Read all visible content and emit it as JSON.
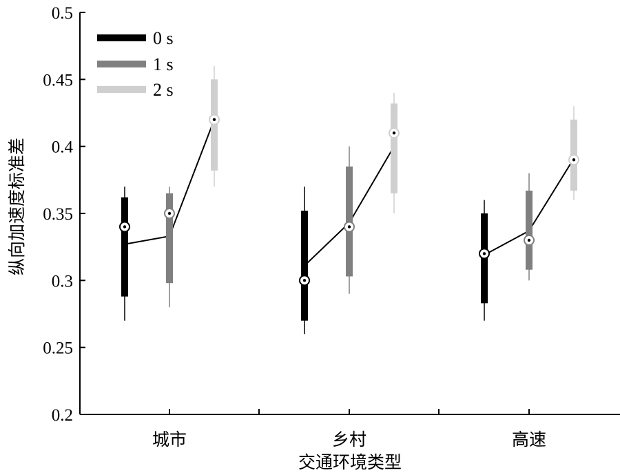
{
  "chart_data": {
    "type": "boxplot",
    "title": "",
    "xlabel": "交通环境类型",
    "ylabel": "纵向加速度标准差",
    "categories": [
      "城市",
      "乡村",
      "高速"
    ],
    "ylim": [
      0.2,
      0.5
    ],
    "yticks": [
      0.2,
      0.25,
      0.3,
      0.35,
      0.4,
      0.45,
      0.5
    ],
    "ytick_labels": [
      "0.2",
      "0.25",
      "0.3",
      "0.35",
      "0.4",
      "0.45",
      "0.5"
    ],
    "legend_position": "top-left",
    "grid": false,
    "series": [
      {
        "name": "0 s",
        "color": "#000000",
        "boxes": [
          {
            "whisker_low": 0.27,
            "q1": 0.288,
            "median": 0.34,
            "q3": 0.362,
            "whisker_high": 0.37,
            "mean": 0.327
          },
          {
            "whisker_low": 0.26,
            "q1": 0.27,
            "median": 0.3,
            "q3": 0.352,
            "whisker_high": 0.37,
            "mean": 0.311
          },
          {
            "whisker_low": 0.27,
            "q1": 0.283,
            "median": 0.32,
            "q3": 0.35,
            "whisker_high": 0.36,
            "mean": 0.319
          }
        ]
      },
      {
        "name": "1 s",
        "color": "#808080",
        "boxes": [
          {
            "whisker_low": 0.28,
            "q1": 0.298,
            "median": 0.35,
            "q3": 0.365,
            "whisker_high": 0.37,
            "mean": 0.333
          },
          {
            "whisker_low": 0.29,
            "q1": 0.303,
            "median": 0.34,
            "q3": 0.385,
            "whisker_high": 0.4,
            "mean": 0.343
          },
          {
            "whisker_low": 0.3,
            "q1": 0.308,
            "median": 0.33,
            "q3": 0.367,
            "whisker_high": 0.38,
            "mean": 0.337
          }
        ]
      },
      {
        "name": "2 s",
        "color": "#cfcfcf",
        "boxes": [
          {
            "whisker_low": 0.37,
            "q1": 0.382,
            "median": 0.42,
            "q3": 0.45,
            "whisker_high": 0.46,
            "mean": 0.42
          },
          {
            "whisker_low": 0.35,
            "q1": 0.365,
            "median": 0.41,
            "q3": 0.432,
            "whisker_high": 0.44,
            "mean": 0.4
          },
          {
            "whisker_low": 0.36,
            "q1": 0.367,
            "median": 0.39,
            "q3": 0.42,
            "whisker_high": 0.43,
            "mean": 0.391
          }
        ]
      }
    ]
  }
}
